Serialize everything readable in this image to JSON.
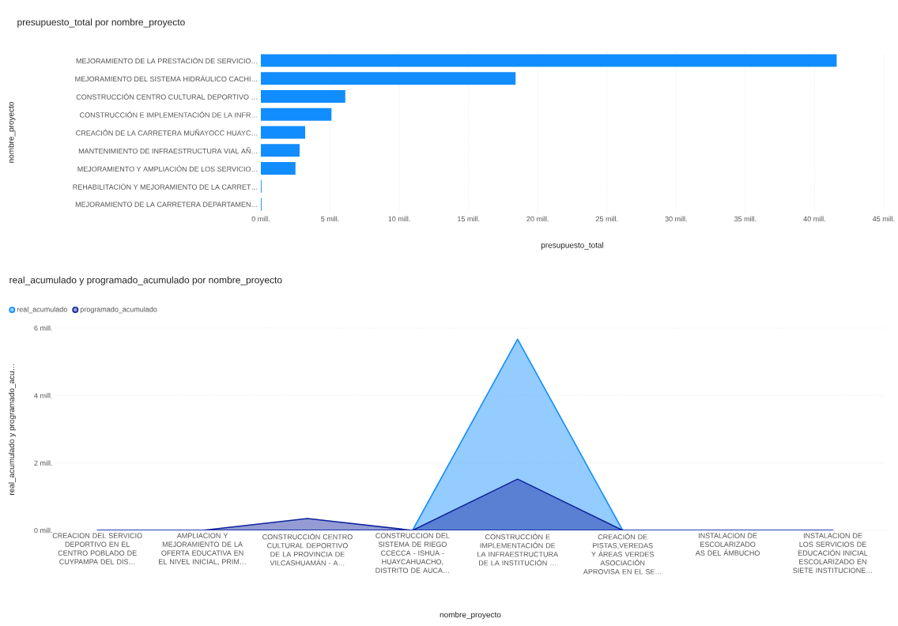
{
  "chart_data": [
    {
      "type": "bar",
      "orientation": "horizontal",
      "title": "presupuesto_total por nombre_proyecto",
      "xlabel": "presupuesto_total",
      "ylabel": "nombre_proyecto",
      "grid": "x",
      "color": "#118dff",
      "categories": [
        "MEJORAMIENTO DE LA PRESTACIÓN DE SERVICIO…",
        "MEJORAMIENTO DEL SISTEMA HIDRÁULICO CACHI…",
        "CONSTRUCCIÓN CENTRO CULTURAL DEPORTIVO …",
        "CONSTRUCCIÓN E IMPLEMENTACIÓN DE LA INFR…",
        "CREACIÓN DE LA CARRETERA MUÑAYOCC HUAYC…",
        "MANTENIMIENTO DE INFRAESTRUCTURA VIAL AÑ…",
        "MEJORAMIENTO Y AMPLIACIÓN DE LOS SERVICIO…",
        "REHABILITACIÓN Y MEJORAMIENTO DE LA CARRET…",
        "MEJORAMIENTO DE LA CARRETERA DEPARTAMEN…"
      ],
      "values": [
        41.6,
        18.4,
        6.1,
        5.1,
        3.2,
        2.8,
        2.5,
        0.05,
        0.05
      ],
      "xlim": [
        0,
        45
      ],
      "xticks": [
        {
          "value": 0,
          "label": "0 mill."
        },
        {
          "value": 5,
          "label": "5 mill."
        },
        {
          "value": 10,
          "label": "10 mill."
        },
        {
          "value": 15,
          "label": "15 mill."
        },
        {
          "value": 20,
          "label": "20 mill."
        },
        {
          "value": 25,
          "label": "25 mill."
        },
        {
          "value": 30,
          "label": "30 mill."
        },
        {
          "value": 35,
          "label": "35 mill."
        },
        {
          "value": 40,
          "label": "40 mill."
        },
        {
          "value": 45,
          "label": "45 mill."
        }
      ]
    },
    {
      "type": "area",
      "title": "real_acumulado y programado_acumulado por nombre_proyecto",
      "xlabel": "nombre_proyecto",
      "ylabel": "real_acumulado y programado_acu…",
      "grid": "y",
      "legend": "top left",
      "categories": [
        "CREACION DEL SERVICIO DEPORTIVO EN EL CENTRO POBLADO DE CUYPAMPA DEL DIS…",
        "AMPLIACION Y MEJORAMIENTO DE LA OFERTA EDUCATIVA EN EL NIVEL INICIAL, PRIM…",
        "CONSTRUCCIÓN CENTRO CULTURAL DEPORTIVO DE LA PROVINCIA DE VILCASHUAMÁN - A…",
        "CONSTRUCCION DEL SISTEMA DE RIEGO CCECCA - ISHUA - HUAYCAHUACHO, DISTRITO DE AUCA…",
        "CONSTRUCCIÓN E IMPLEMENTACIÓN DE LA INFRAESTRUCTURA DE LA INSTITUCIÓN …",
        "CREACIÓN DE PISTAS,VEREDAS Y ÁREAS VERDES ASOCIACIÓN APROVISA EN EL SE…",
        "INSTALACION DE ESCOLARIZADO AS DEL ÁMBUCHO",
        "INSTALACION DE LOS SERVICIOS DE EDUCACIÓN INICIAL ESCOLARIZADO EN SIETE INSTITUCIONE…"
      ],
      "series": [
        {
          "name": "real_acumulado",
          "color": "#118dff",
          "values": [
            0,
            0,
            0,
            0,
            5.67,
            0,
            0,
            0
          ]
        },
        {
          "name": "programado_acumulado",
          "color": "#12239e",
          "values": [
            0,
            0,
            0.35,
            0,
            1.52,
            0,
            0,
            0
          ]
        }
      ],
      "ylim": [
        0,
        6
      ],
      "yticks": [
        {
          "value": 0,
          "label": "0 mill."
        },
        {
          "value": 2,
          "label": "2 mill."
        },
        {
          "value": 4,
          "label": "4 mill."
        },
        {
          "value": 6,
          "label": "6 mill."
        }
      ]
    }
  ]
}
